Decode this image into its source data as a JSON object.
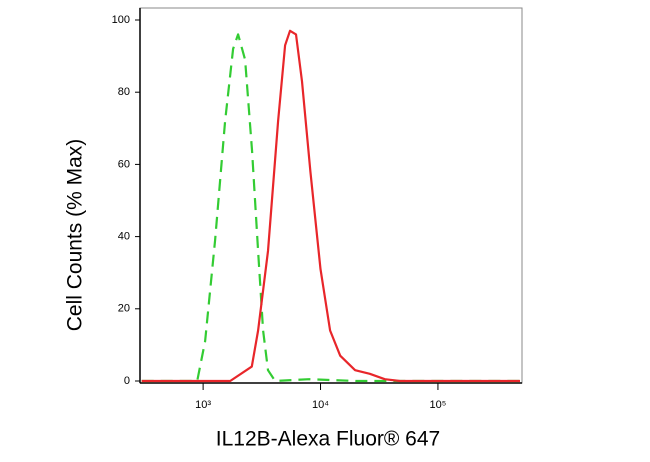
{
  "chart_data": {
    "type": "line",
    "xlabel": "IL12B-Alexa Fluor® 647",
    "ylabel": "Cell Counts (% Max)",
    "xscale": "log",
    "xlim": [
      290,
      520000
    ],
    "ylim": [
      0,
      100
    ],
    "xticks": [
      {
        "value": 1000,
        "label": "10³"
      },
      {
        "value": 10000,
        "label": "10⁴"
      },
      {
        "value": 100000,
        "label": "10⁵"
      }
    ],
    "yticks": [
      0,
      20,
      40,
      60,
      80,
      100
    ],
    "series": [
      {
        "color": "#33cc33",
        "dash": true,
        "x": [
          300,
          890,
          1040,
          1265,
          1540,
          1800,
          1985,
          2280,
          2610,
          2940,
          3240,
          3570,
          4100,
          8000,
          20000,
          100000,
          500000
        ],
        "values": [
          0,
          0,
          11,
          39,
          72,
          92,
          96,
          89,
          64,
          36,
          14,
          3,
          0,
          0.5,
          0,
          0,
          0
        ]
      },
      {
        "color": "#e8262a",
        "dash": false,
        "x": [
          300,
          1700,
          2600,
          2940,
          3570,
          4350,
          4990,
          5500,
          6180,
          6960,
          8200,
          10000,
          12060,
          14700,
          19700,
          26300,
          35300,
          47400,
          500000
        ],
        "values": [
          0,
          0,
          4,
          14,
          36,
          72,
          93,
          97,
          96,
          83,
          58,
          31,
          14,
          7,
          3,
          2,
          0.5,
          0,
          0
        ]
      }
    ]
  }
}
